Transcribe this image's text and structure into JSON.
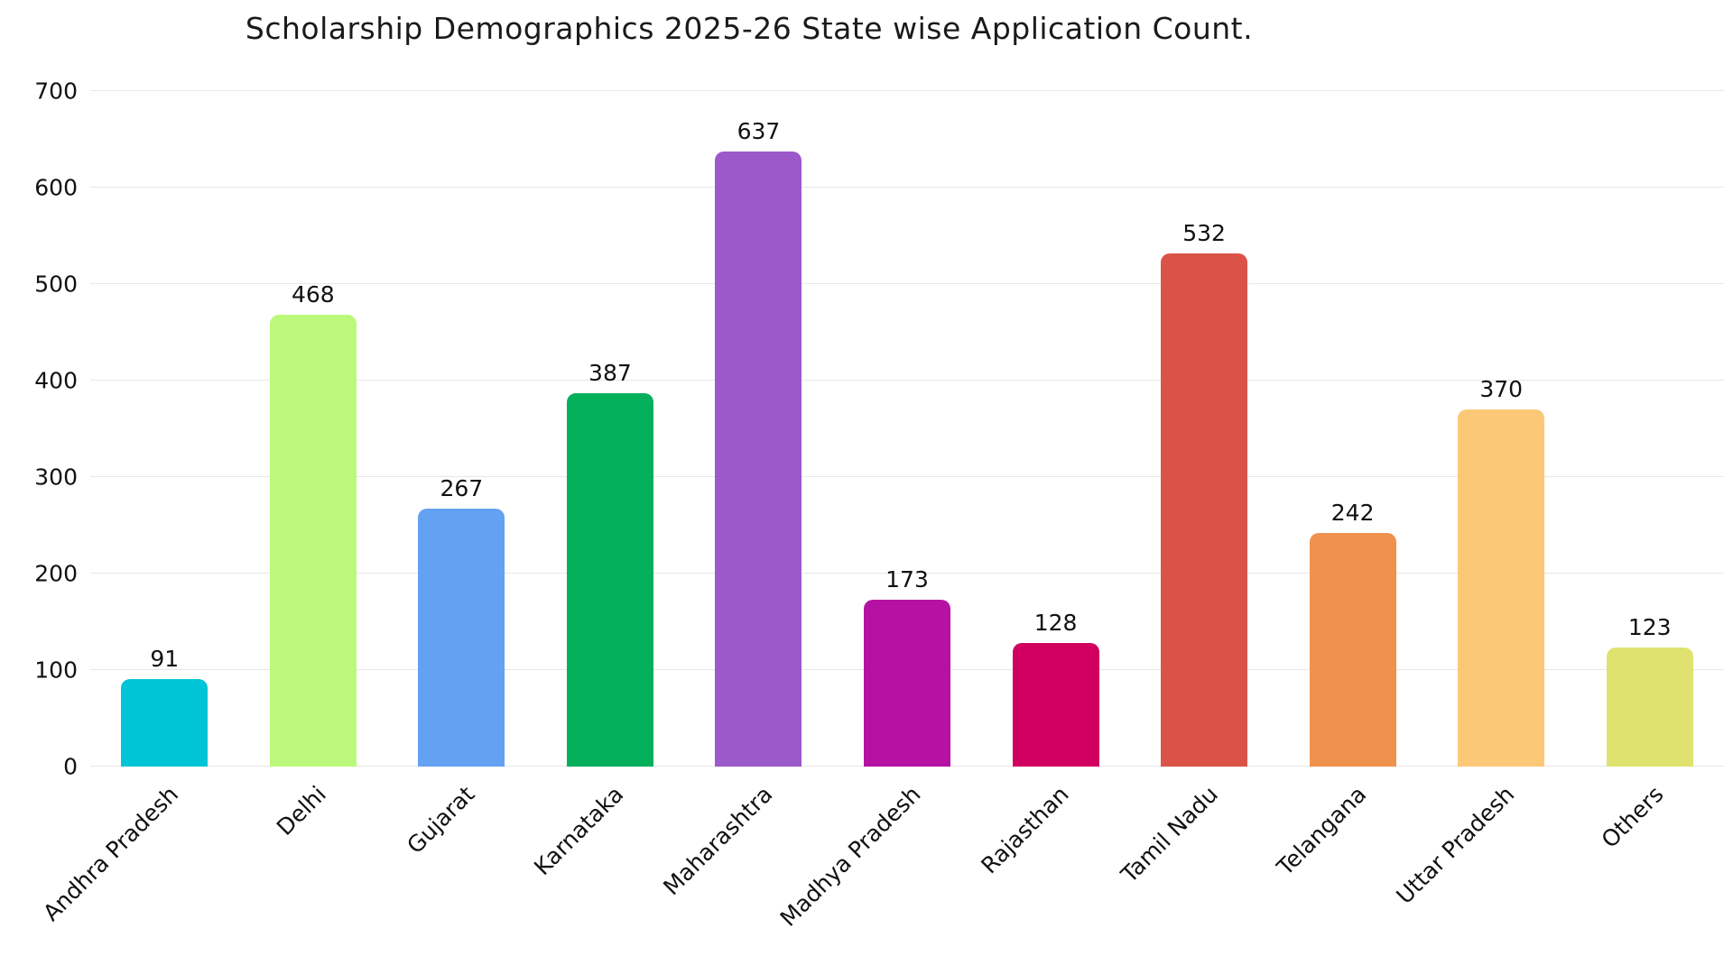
{
  "chart_data": {
    "type": "bar",
    "title": "Scholarship Demographics 2025-26 State wise Application Count.",
    "categories": [
      "Andhra Pradesh",
      "Delhi",
      "Gujarat",
      "Karnataka",
      "Maharashtra",
      "Madhya Pradesh",
      "Rajasthan",
      "Tamil Nadu",
      "Telangana",
      "Uttar Pradesh",
      "Others"
    ],
    "values": [
      91,
      468,
      267,
      387,
      637,
      173,
      128,
      532,
      242,
      370,
      123
    ],
    "bar_colors": [
      "#00C5D6",
      "#BCF97B",
      "#63A1F2",
      "#04B05C",
      "#9C59C9",
      "#B512A4",
      "#D10060",
      "#DB5348",
      "#F0914E",
      "#FBC878",
      "#DFE26F"
    ],
    "xlabel": "",
    "ylabel": "",
    "ylim": [
      0,
      700
    ],
    "yticks": [
      0,
      100,
      200,
      300,
      400,
      500,
      600,
      700
    ],
    "grid": "horizontal",
    "value_labels": true,
    "legend": "none",
    "x_tick_rotation_degrees": 45
  },
  "colors": {
    "background": "#ffffff",
    "grid_line": "#e7e7e7",
    "text": "#1a1a1a"
  }
}
